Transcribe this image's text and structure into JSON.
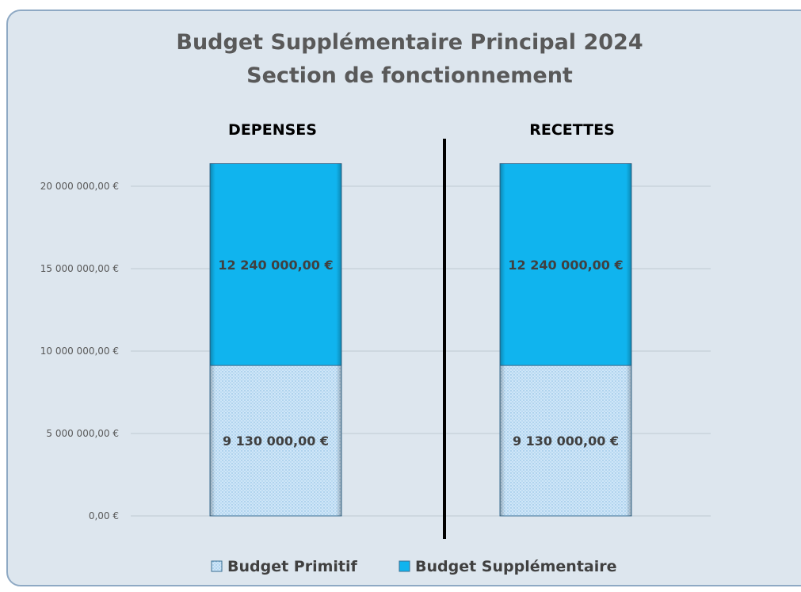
{
  "chart_data": {
    "type": "bar",
    "stacked": true,
    "title": "Budget Supplémentaire Principal 2024",
    "subtitle": "Section de fonctionnement",
    "categories": [
      "DEPENSES",
      "RECETTES"
    ],
    "series": [
      {
        "name": "Budget Primitif",
        "values": [
          9130000,
          9130000
        ],
        "labels": [
          "9 130 000,00 €",
          "9 130 000,00 €"
        ],
        "color": "#cfe6f8"
      },
      {
        "name": "Budget Supplémentaire",
        "values": [
          12240000,
          12240000
        ],
        "labels": [
          "12 240 000,00 €",
          "12 240 000,00 €"
        ],
        "color": "#10b4ee"
      }
    ],
    "ylim": [
      0,
      20000000
    ],
    "yticks": [
      0,
      5000000,
      10000000,
      15000000,
      20000000
    ],
    "ytick_labels": [
      "0,00 €",
      "5 000 000,00 €",
      "10 000 000,00 €",
      "15 000 000,00 €",
      "20 000 000,00 €"
    ],
    "grid": true,
    "legend_position": "bottom",
    "divider_between_categories": true
  }
}
